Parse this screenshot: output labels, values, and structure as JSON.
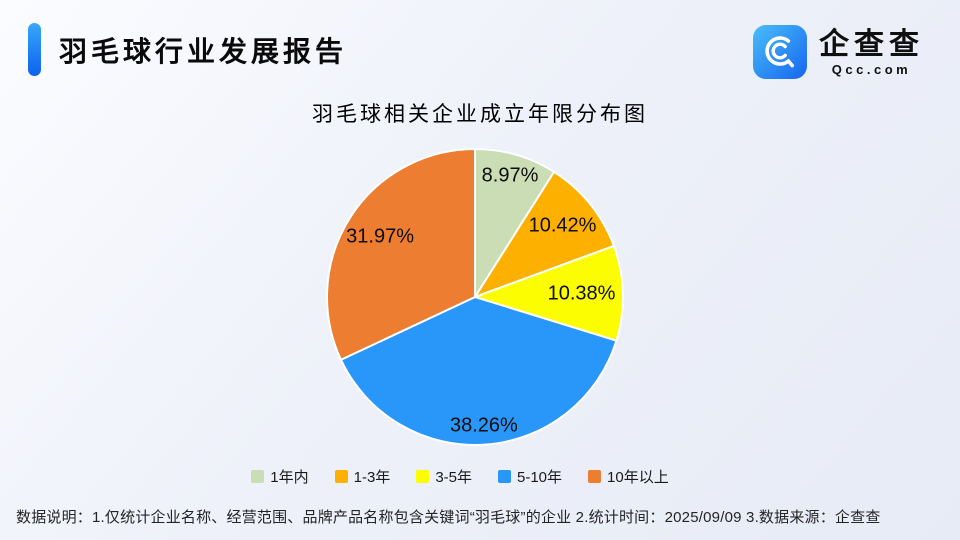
{
  "header": {
    "title": "羽毛球行业发展报告"
  },
  "logo": {
    "icon": "qcc-magnifier-icon",
    "name": "企查查",
    "domain": "Qcc.com"
  },
  "theme": {
    "accent_blue": "#1677f0",
    "background_tint": "#edf0f8"
  },
  "chart_data": {
    "type": "pie",
    "title": "羽毛球相关企业成立年限分布图",
    "unit": "%",
    "start_angle_deg": 0,
    "direction": "clockwise",
    "legend_position": "bottom",
    "slices": [
      {
        "label": "1年内",
        "value": 8.97,
        "color": "#cbddb5"
      },
      {
        "label": "1-3年",
        "value": 10.42,
        "color": "#feb001"
      },
      {
        "label": "3-5年",
        "value": 10.38,
        "color": "#fdfd02"
      },
      {
        "label": "5-10年",
        "value": 38.26,
        "color": "#2996f9"
      },
      {
        "label": "10年以上",
        "value": 31.97,
        "color": "#ec7d31"
      }
    ],
    "data_labels": [
      "8.97%",
      "10.42%",
      "10.38%",
      "38.26%",
      "31.97%"
    ]
  },
  "footnote": {
    "text": "数据说明：1.仅统计企业名称、经营范围、品牌产品名称包含关键词“羽毛球”的企业  2.统计时间：2025/09/09   3.数据来源：企查查"
  }
}
